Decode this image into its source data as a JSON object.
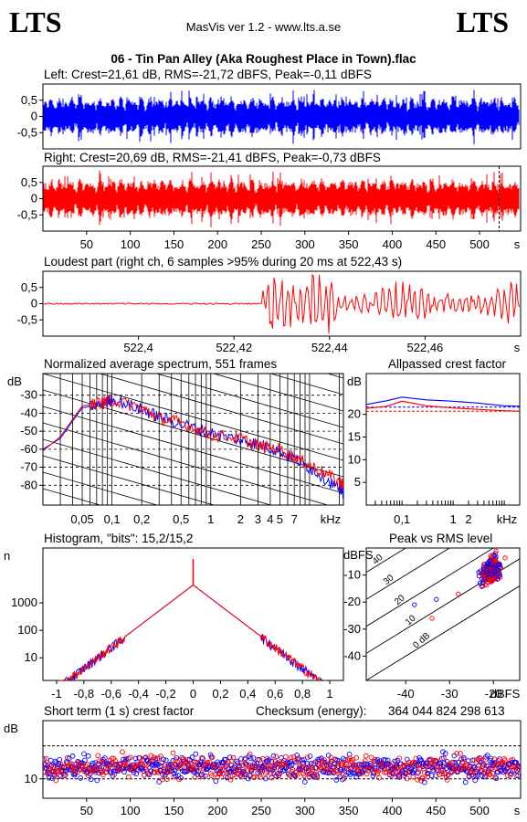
{
  "header": {
    "logo_left": "LTS",
    "logo_right": "LTS",
    "app_title": "MasVis ver 1.2 - www.lts.a.se",
    "file_title": "06 - Tin Pan Alley (Aka Roughest Place in Town).flac"
  },
  "colors": {
    "left_channel": "#0000ff",
    "right_channel": "#ff0000"
  },
  "chart_data": [
    {
      "type": "line",
      "name": "left_waveform",
      "title": "Left: Crest=21,61 dB, RMS=-21,72 dBFS, Peak=-0,11 dBFS",
      "y_ticks": [
        "0,5",
        "0",
        "-0,5"
      ],
      "ylim": [
        -1,
        1
      ],
      "xlim": [
        0,
        547
      ],
      "color": "#0000ff"
    },
    {
      "type": "line",
      "name": "right_waveform",
      "title": "Right: Crest=20,69 dB, RMS=-21,41 dBFS, Peak=-0,73 dBFS",
      "y_ticks": [
        "0,5",
        "0",
        "-0,5"
      ],
      "x_ticks": [
        50,
        100,
        150,
        200,
        250,
        300,
        350,
        400,
        450,
        500
      ],
      "xunit": "s",
      "ylim": [
        -1,
        1
      ],
      "xlim": [
        0,
        547
      ],
      "loudest_marker_s": 522.43,
      "color": "#ff0000"
    },
    {
      "type": "line",
      "name": "loudest_part",
      "title": "Loudest part (right ch, 6 samples >95% during 20 ms at 522,43 s)",
      "y_ticks": [
        "0,5",
        "0",
        "-0,5"
      ],
      "x_ticks": [
        "522,4",
        "522,42",
        "522,44",
        "522,46"
      ],
      "x_tick_values": [
        522.4,
        522.42,
        522.44,
        522.46
      ],
      "xunit": "s",
      "xlim": [
        522.38,
        522.48
      ],
      "ylim": [
        -1,
        1
      ],
      "onset_s": 522.426,
      "color": "#ff0000"
    },
    {
      "type": "line",
      "name": "spectrum",
      "title": "Normalized average spectrum, 551 frames",
      "ylabel": "dB",
      "y_ticks": [
        -30,
        -40,
        -50,
        -60,
        -70,
        -80
      ],
      "ylim": [
        -91,
        -18
      ],
      "x_ticks": [
        "0,05",
        "0,1",
        "0,2",
        "0,5",
        "1",
        "2",
        "3",
        "4",
        "5",
        "7",
        "kHz"
      ],
      "x_tick_values": [
        0.05,
        0.1,
        0.2,
        0.5,
        1,
        2,
        3,
        4,
        5,
        7
      ],
      "xlim": [
        0.02,
        22
      ],
      "log_x": true,
      "series": [
        {
          "color": "#0000ff",
          "x": [
            0.02,
            0.03,
            0.05,
            0.08,
            0.1,
            0.2,
            0.3,
            0.5,
            1,
            2,
            3,
            5,
            8,
            12,
            20,
            22
          ],
          "y": [
            -60,
            -54,
            -37,
            -35,
            -32,
            -38,
            -42,
            -46,
            -51,
            -55,
            -57,
            -61,
            -67,
            -73,
            -82,
            -84
          ]
        },
        {
          "color": "#ff0000",
          "x": [
            0.02,
            0.03,
            0.05,
            0.08,
            0.1,
            0.2,
            0.3,
            0.5,
            1,
            2,
            3,
            5,
            8,
            12,
            20,
            22
          ],
          "y": [
            -61,
            -53,
            -36,
            -34,
            -33,
            -37,
            -43,
            -45,
            -52,
            -54,
            -58,
            -60,
            -66,
            -71,
            -78,
            -80
          ]
        }
      ]
    },
    {
      "type": "line",
      "name": "allpassed_crest",
      "title": "Allpassed crest factor",
      "ylabel": "dB",
      "y_ticks": [
        20,
        15,
        10,
        5
      ],
      "ylim": [
        0,
        29
      ],
      "x_ticks": [
        "0,1",
        "1",
        "2",
        "kHz"
      ],
      "x_tick_values": [
        0.1,
        1,
        2
      ],
      "xlim": [
        0.02,
        20
      ],
      "log_x": true,
      "dashed_levels": [
        21.6,
        20.7
      ],
      "series": [
        {
          "color": "#0000ff",
          "x": [
            0.02,
            0.05,
            0.1,
            0.3,
            1,
            3,
            10,
            20
          ],
          "y": [
            22.2,
            23,
            23.8,
            23.2,
            22.9,
            22.5,
            21.9,
            21.8
          ]
        },
        {
          "color": "#ff0000",
          "x": [
            0.02,
            0.05,
            0.1,
            0.3,
            1,
            3,
            10,
            20
          ],
          "y": [
            21.3,
            21.8,
            22.9,
            21.9,
            21.4,
            21.1,
            20.8,
            20.7
          ]
        }
      ]
    },
    {
      "type": "line",
      "name": "histogram",
      "title": "Histogram, \"bits\": 15,2/15,2",
      "ylabel": "n",
      "y_ticks": [
        1000,
        100,
        10
      ],
      "ylim": [
        1.5,
        100000
      ],
      "log_y": true,
      "x_ticks": [
        "-1",
        "-0,8",
        "-0,6",
        "-0,4",
        "-0,2",
        "0",
        "0,2",
        "0,4",
        "0,6",
        "0,8",
        "1"
      ],
      "x_tick_values": [
        -1,
        -0.8,
        -0.6,
        -0.4,
        -0.2,
        0,
        0.2,
        0.4,
        0.6,
        0.8,
        1
      ],
      "xlim": [
        -1.1,
        1.1
      ],
      "peak_count": 4500,
      "center_spike_count": 40000
    },
    {
      "type": "scatter",
      "name": "peak_vs_rms",
      "title": "Peak vs RMS level",
      "ylabel": "dBFS",
      "xlabel": "dBFS",
      "y_ticks": [
        -10,
        -20,
        -30,
        -40
      ],
      "x_ticks": [
        -40,
        -30,
        -20
      ],
      "xlim": [
        -49,
        -14
      ],
      "ylim": [
        -49,
        0
      ],
      "crest_lines": [
        "40",
        "30",
        "20",
        "10",
        "0 dB"
      ],
      "crest_values": [
        40,
        30,
        20,
        10,
        0
      ],
      "cluster": {
        "x_center": -20.5,
        "y_center": -8,
        "x_spread": 2.5,
        "y_spread": 5
      },
      "outliers": [
        {
          "x": -38,
          "y": -21
        },
        {
          "x": -34,
          "y": -26
        },
        {
          "x": -33,
          "y": -19
        },
        {
          "x": -28,
          "y": -17
        }
      ]
    },
    {
      "type": "scatter",
      "name": "short_term_crest",
      "title": "Short term (1 s) crest factor",
      "checksum_label": "Checksum (energy):",
      "checksum_value": "364 044 824 298 613",
      "ylabel": "dB",
      "y_ticks": [
        10
      ],
      "ylim": [
        5,
        25
      ],
      "x_ticks": [
        50,
        100,
        150,
        200,
        250,
        300,
        350,
        400,
        450,
        500
      ],
      "xunit": "s",
      "xlim": [
        0,
        547
      ],
      "dashed_levels": [
        18.5,
        10
      ],
      "mean_crest_db": 13,
      "spread_db": 2.5
    }
  ]
}
